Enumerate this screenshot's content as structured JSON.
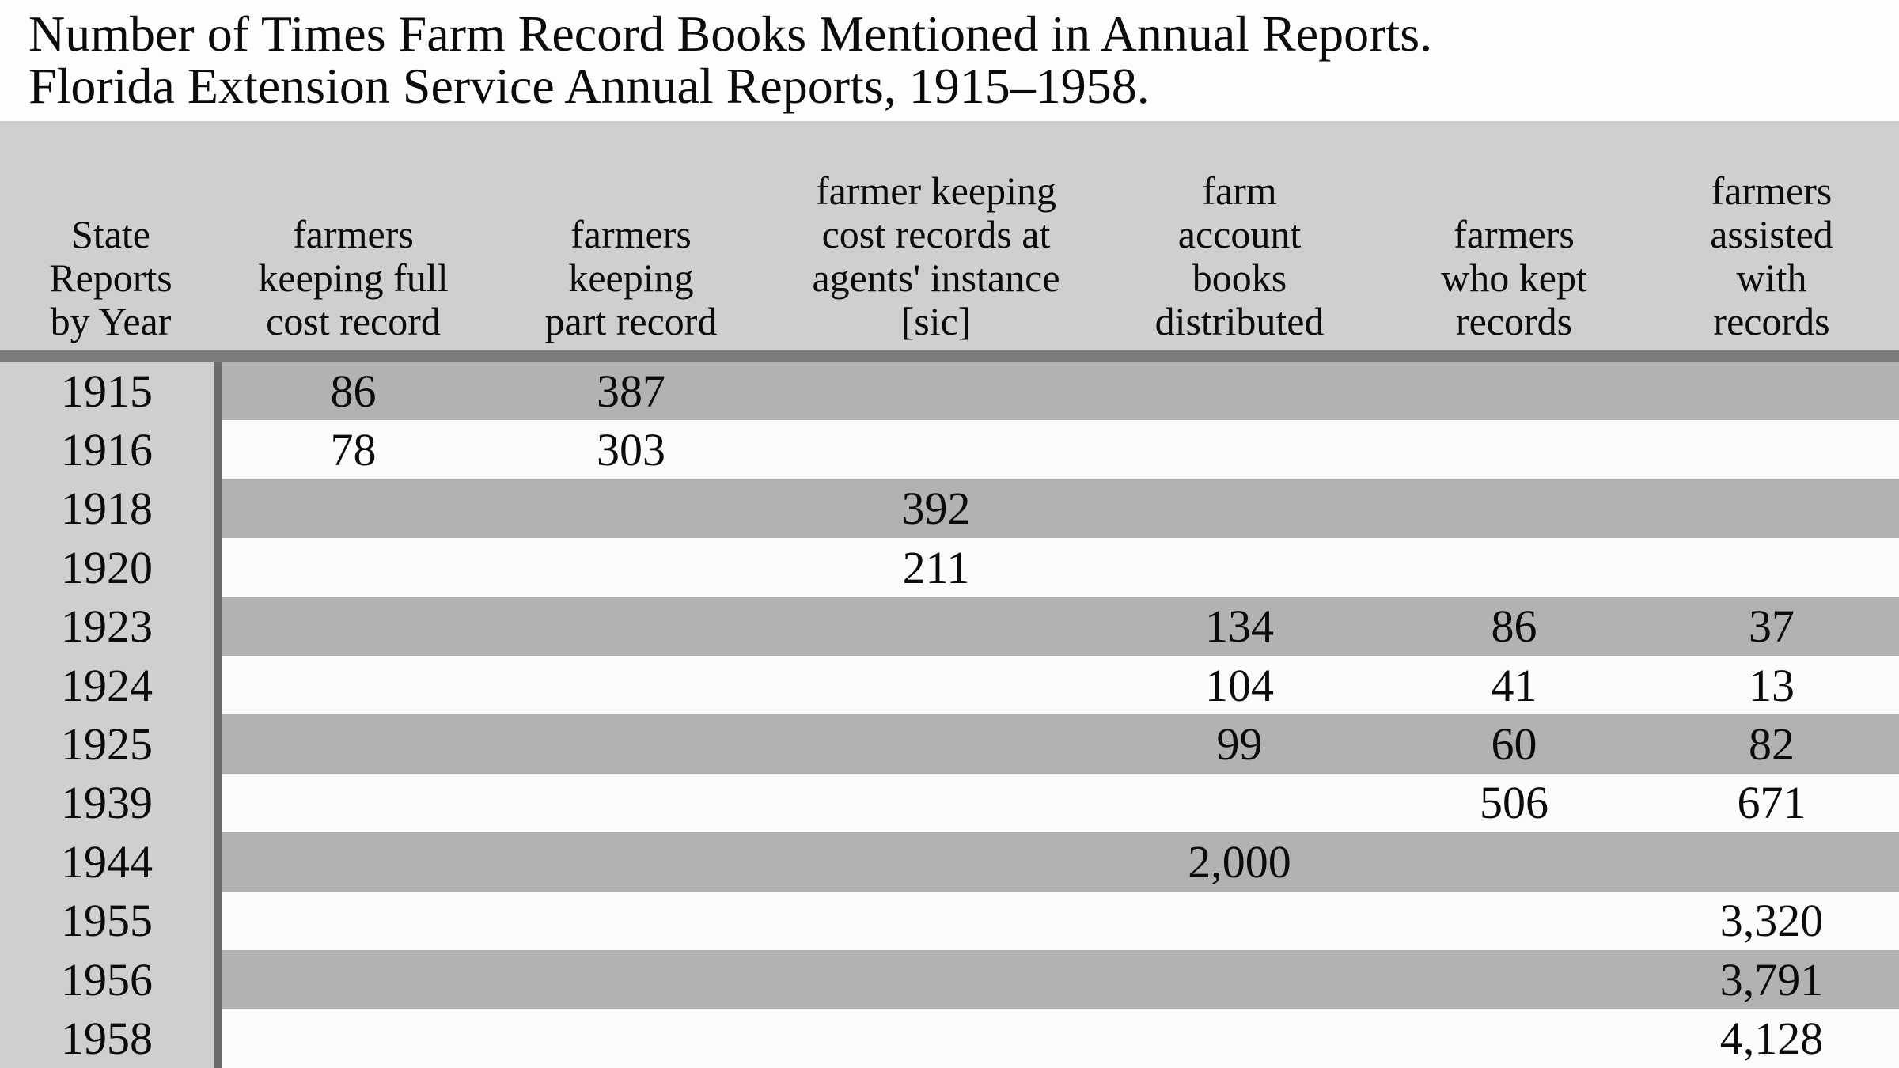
{
  "title": {
    "line1": "Number of Times Farm Record Books Mentioned in Annual Reports.",
    "line2": "Florida Extension Service Annual Reports, 1915–1958."
  },
  "table": {
    "header": [
      {
        "id": "year",
        "lines": [
          "State",
          "Reports",
          "by Year"
        ]
      },
      {
        "id": "full-cost-record",
        "lines": [
          "farmers",
          "keeping full",
          "cost record"
        ]
      },
      {
        "id": "part-record",
        "lines": [
          "farmers",
          "keeping",
          "part record"
        ]
      },
      {
        "id": "agents-instance",
        "lines": [
          "farmer keeping",
          "cost records at",
          "agents' instance",
          "[sic]"
        ]
      },
      {
        "id": "books-distributed",
        "lines": [
          "farm",
          "account",
          "books",
          "distributed"
        ]
      },
      {
        "id": "kept-records",
        "lines": [
          "farmers",
          "who kept",
          "records"
        ]
      },
      {
        "id": "assisted-records",
        "lines": [
          "farmers",
          "assisted",
          "with",
          "records"
        ]
      }
    ],
    "rows": [
      {
        "year": "1915",
        "cells": [
          "86",
          "387",
          "",
          "",
          "",
          ""
        ]
      },
      {
        "year": "1916",
        "cells": [
          "78",
          "303",
          "",
          "",
          "",
          ""
        ]
      },
      {
        "year": "1918",
        "cells": [
          "",
          "",
          "392",
          "",
          "",
          ""
        ]
      },
      {
        "year": "1920",
        "cells": [
          "",
          "",
          "211",
          "",
          "",
          ""
        ]
      },
      {
        "year": "1923",
        "cells": [
          "",
          "",
          "",
          "134",
          "86",
          "37"
        ]
      },
      {
        "year": "1924",
        "cells": [
          "",
          "",
          "",
          "104",
          "41",
          "13"
        ]
      },
      {
        "year": "1925",
        "cells": [
          "",
          "",
          "",
          "99",
          "60",
          "82"
        ]
      },
      {
        "year": "1939",
        "cells": [
          "",
          "",
          "",
          "",
          "506",
          "671"
        ]
      },
      {
        "year": "1944",
        "cells": [
          "",
          "",
          "",
          "2,000",
          "",
          ""
        ]
      },
      {
        "year": "1955",
        "cells": [
          "",
          "",
          "",
          "",
          "",
          "3,320"
        ]
      },
      {
        "year": "1956",
        "cells": [
          "",
          "",
          "",
          "",
          "",
          "3,791"
        ]
      },
      {
        "year": "1958",
        "cells": [
          "",
          "",
          "",
          "",
          "",
          "4,128"
        ]
      }
    ]
  },
  "colors": {
    "page_background": "#fcfcfc",
    "header_and_year_column": "#cfcfcf",
    "stripe_gray": "#b2b2b2",
    "stripe_white": "#fbfbfb",
    "header_bottom_bar": "#7c7c7c",
    "year_column_divider": "#6b6b6b",
    "text": "#0b0b0b"
  },
  "chart_data": {
    "type": "table",
    "title": "Number of Times Farm Record Books Mentioned in Annual Reports.",
    "subtitle": "Florida Extension Service Annual Reports, 1915–1958.",
    "columns": [
      "State Reports by Year",
      "farmers keeping full cost record",
      "farmers keeping part record",
      "farmer keeping cost records at agents' instance [sic]",
      "farm account books distributed",
      "farmers who kept records",
      "farmers assisted with records"
    ],
    "rows": [
      [
        "1915",
        86,
        387,
        null,
        null,
        null,
        null
      ],
      [
        "1916",
        78,
        303,
        null,
        null,
        null,
        null
      ],
      [
        "1918",
        null,
        null,
        392,
        null,
        null,
        null
      ],
      [
        "1920",
        null,
        null,
        211,
        null,
        null,
        null
      ],
      [
        "1923",
        null,
        null,
        null,
        134,
        86,
        37
      ],
      [
        "1924",
        null,
        null,
        null,
        104,
        41,
        13
      ],
      [
        "1925",
        null,
        null,
        null,
        99,
        60,
        82
      ],
      [
        "1939",
        null,
        null,
        null,
        null,
        506,
        671
      ],
      [
        "1944",
        null,
        null,
        null,
        2000,
        null,
        null
      ],
      [
        "1955",
        null,
        null,
        null,
        null,
        null,
        3320
      ],
      [
        "1956",
        null,
        null,
        null,
        null,
        null,
        3791
      ],
      [
        "1958",
        null,
        null,
        null,
        null,
        null,
        4128
      ]
    ],
    "layout": {
      "striped_rows": true,
      "header_position": "top",
      "grid": false
    }
  }
}
